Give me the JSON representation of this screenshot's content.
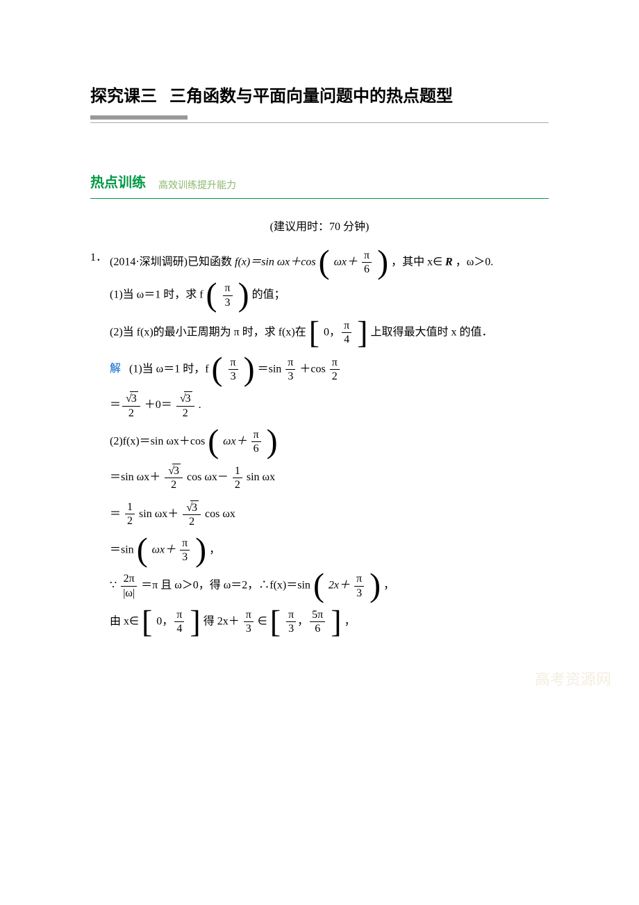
{
  "header": {
    "prefix": "探究课三",
    "title": "三角函数与平面向量问题中的热点题型"
  },
  "section": {
    "label": "热点训练",
    "sub": "高效训练提升能力"
  },
  "time_hint": "(建议用时：70 分钟)",
  "watermark": "高考资源网",
  "problem": {
    "number": "1．",
    "stem_a": "(2014·深圳调研)已知函数 ",
    "fx_eq": "f(x)＝sin ωx＋cos",
    "stem_b": "，其中 x∈",
    "R": "R",
    "stem_c": "，ω＞0.",
    "omega_x_plus": "ωx＋",
    "pi": "π",
    "six": "6",
    "q1_a": "(1)当 ω＝1 时，求 f",
    "three": "3",
    "q1_b": "的值；",
    "q2_a": "(2)当 f(x)的最小正周期为 π 时，求 f(x)在",
    "zero": "0",
    "four": "4",
    "q2_b": "上取得最大值时 x 的值．",
    "sol_label": "解",
    "sol1_a": "(1)当 ω＝1 时，f",
    "eq1": "＝sin ",
    "plus_cos": "＋cos ",
    "two": "2",
    "sqrt3": "3",
    "eq_plus0": "＋0＝",
    "dot": ".",
    "sol2_a": "(2)f(x)＝sin ωx＋cos",
    "step2a": "＝sin ωx＋",
    "cos_wx": "cos ωx－",
    "sin_wx": "sin ωx",
    "one": "1",
    "step2b_a": "＝",
    "step2b_b": "sin ωx＋",
    "step2b_c": "cos ωx",
    "step3": "＝sin",
    "comma": "，",
    "step4_a": "∵",
    "two_pi": "2π",
    "abs_w": "|ω|",
    "step4_b": "＝π 且 ω＞0，得 ω＝2，∴f(x)＝sin",
    "two_x_plus": "2x＋",
    "step5_a": "由 x∈",
    "step5_b": "得 2x＋",
    "in_sym": "∈",
    "five_pi": "5π"
  },
  "colors": {
    "green": "#009944",
    "green_light": "#8db76e",
    "blue": "#0066cc",
    "gray_bar": "#999999",
    "watermark": "#f4eee0"
  }
}
